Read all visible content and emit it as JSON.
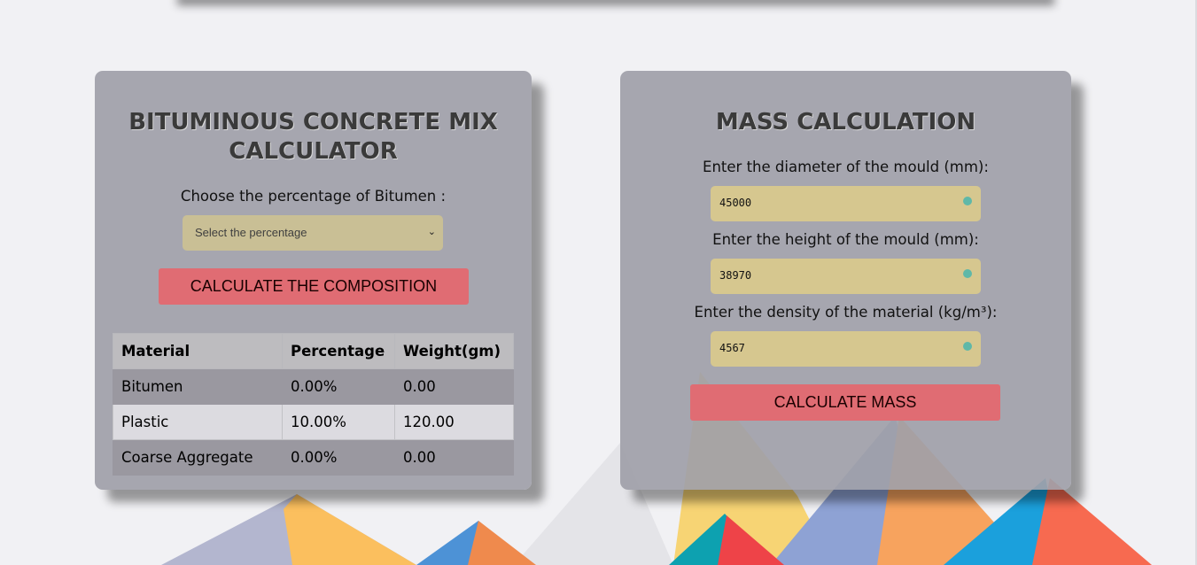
{
  "colors": {
    "page_bg": "#f1f1f4",
    "card_bg": "#a0a0a8",
    "button": "#e06c73",
    "input_bg": "#d6c78f",
    "input_dot": "#5fb8a8"
  },
  "mix_calculator": {
    "title": "BITUMINOUS CONCRETE MIX CALCULATOR",
    "title_line1": "BITUMINOUS CONCRETE MIX",
    "title_line2": "CALCULATOR",
    "percentage_label": "Choose the percentage of Bitumen :",
    "percentage_select": {
      "placeholder": "Select the percentage",
      "icon": "chevron-down-icon"
    },
    "calculate_button": "CALCULATE THE COMPOSITION",
    "table": {
      "headers": [
        "Material",
        "Percentage",
        "Weight(gm)"
      ],
      "rows": [
        [
          "Bitumen",
          "0.00%",
          "0.00"
        ],
        [
          "Plastic",
          "10.00%",
          "120.00"
        ],
        [
          "Coarse Aggregate",
          "0.00%",
          "0.00"
        ]
      ]
    }
  },
  "mass_calculation": {
    "title": "MASS CALCULATION",
    "diameter_label": "Enter the diameter of the mould (mm):",
    "diameter_value": "45000",
    "height_label": "Enter the height of the mould (mm):",
    "height_value": "38970",
    "density_label": "Enter the density of the material (kg/m³):",
    "density_value": "4567",
    "calculate_button": "CALCULATE MASS"
  }
}
